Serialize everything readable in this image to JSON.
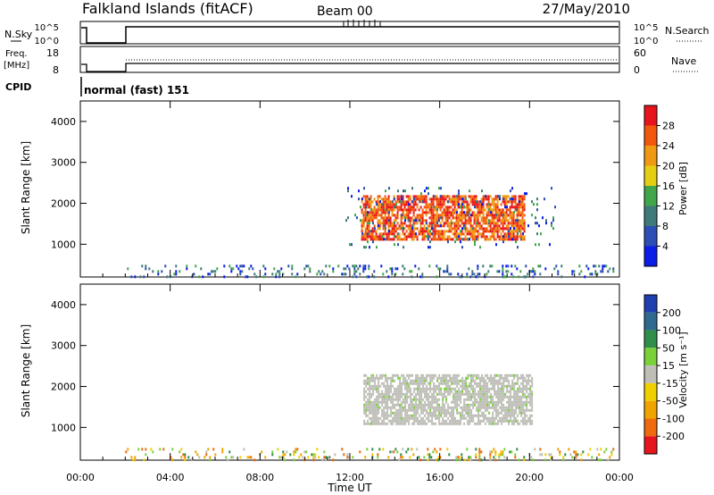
{
  "header": {
    "station": "Falkland Islands (fitACF)",
    "beam": "Beam 00",
    "date": "27/May/2010"
  },
  "top_panels": {
    "nsky_label": "N.Sky",
    "nsky_ticks": [
      "10^5",
      "10^0"
    ],
    "nsearch_label": "N.Search",
    "nsearch_ticks": [
      "10^5",
      "10^0"
    ],
    "freq_label": "Freq.",
    "freq_unit": "[MHz]",
    "freq_ticks": [
      "18",
      "8"
    ],
    "nave_label": "Nave",
    "nave_ticks": [
      "60",
      "0"
    ],
    "cpid_label": "CPID",
    "cpid_text": "normal (fast) 151"
  },
  "chart_data": [
    {
      "type": "heatmap",
      "title": "",
      "xlabel": "Time UT",
      "ylabel": "Slant Range [km]",
      "x_ticks": [
        "00:00",
        "04:00",
        "08:00",
        "12:00",
        "16:00",
        "20:00",
        "00:00"
      ],
      "y_ticks": [
        1000,
        2000,
        3000,
        4000
      ],
      "ylim": [
        200,
        4500
      ],
      "colorbar": {
        "label": "Power [dB]",
        "ticks": [
          4,
          8,
          12,
          16,
          20,
          24,
          28
        ],
        "colors": [
          "#0b1de6",
          "#2b4fb4",
          "#3f7a7a",
          "#41a64a",
          "#e6cf12",
          "#ef9a12",
          "#f2580c",
          "#e8141b"
        ]
      },
      "regions": [
        {
          "desc": "near-range scatter",
          "t_start": 2.0,
          "t_end": 23.7,
          "r_min": 200,
          "r_max": 500,
          "value": 12
        },
        {
          "desc": "main echo band",
          "t_start": 12.5,
          "t_end": 19.8,
          "r_min": 1100,
          "r_max": 2200,
          "value": 26
        },
        {
          "desc": "echo band edge",
          "t_start": 11.8,
          "t_end": 21.2,
          "r_min": 900,
          "r_max": 2400,
          "value": 6
        }
      ]
    },
    {
      "type": "heatmap",
      "title": "",
      "xlabel": "Time UT",
      "ylabel": "Slant Range [km]",
      "x_ticks": [
        "00:00",
        "04:00",
        "08:00",
        "12:00",
        "16:00",
        "20:00",
        "00:00"
      ],
      "y_ticks": [
        1000,
        2000,
        3000,
        4000
      ],
      "ylim": [
        200,
        4500
      ],
      "colorbar": {
        "label": "Velocity [m s⁻¹]",
        "ticks": [
          200,
          100,
          50,
          15,
          -15,
          -50,
          -100,
          -200
        ],
        "colors": [
          "#1f3fb0",
          "#2d6a8e",
          "#2f8f4a",
          "#7ad13a",
          "#bfbfb8",
          "#f1d000",
          "#f1a400",
          "#ee6a0c",
          "#e6141b"
        ]
      },
      "regions": [
        {
          "desc": "near-range scatter",
          "t_start": 2.0,
          "t_end": 23.7,
          "r_min": 200,
          "r_max": 500,
          "value": -50
        },
        {
          "desc": "ground scatter band",
          "t_start": 12.6,
          "t_end": 20.1,
          "r_min": 1100,
          "r_max": 2300,
          "value": 0
        }
      ]
    }
  ]
}
